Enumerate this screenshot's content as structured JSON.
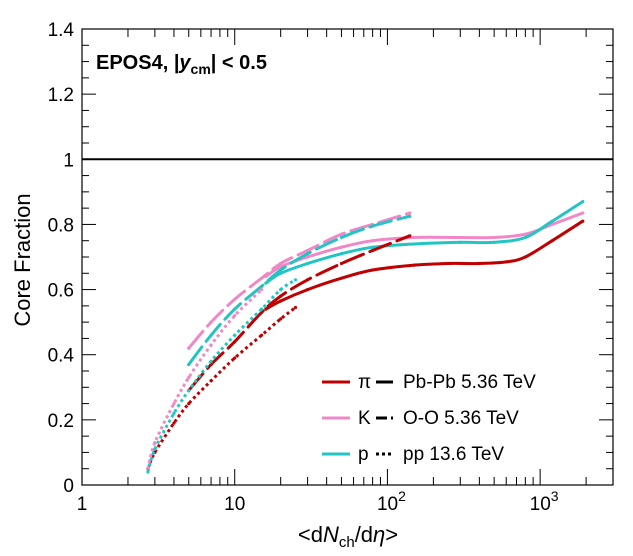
{
  "chart_data": {
    "type": "line",
    "title": "",
    "annotation": {
      "prefix": "EPOS4, |",
      "var": "y",
      "sub": "cm",
      "suffix": "| < 0.5"
    },
    "xlabel": {
      "open": "<d",
      "var": "N",
      "sub": "ch",
      "mid": "/d",
      "var2": "η",
      "close": ">"
    },
    "ylabel": "Core Fraction",
    "xscale": "log",
    "xlim": [
      1,
      3000
    ],
    "ylim": [
      0,
      1.4
    ],
    "yticks": [
      0,
      0.2,
      0.4,
      0.6,
      0.8,
      1,
      1.2,
      1.4
    ],
    "ytick_labels": [
      "0",
      "0.2",
      "0.4",
      "0.6",
      "0.8",
      "1",
      "1.2",
      "1.4"
    ],
    "xticks": [
      {
        "value": 1,
        "label": "1"
      },
      {
        "value": 10,
        "label": "10"
      },
      {
        "value": 100,
        "label": "10",
        "exp": "2"
      },
      {
        "value": 1000,
        "label": "10",
        "exp": "3"
      }
    ],
    "reference_line": {
      "y": 1,
      "color": "#000000"
    },
    "colors": {
      "pi": "#c00000",
      "K": "#f088c8",
      "p": "#22c4c4"
    },
    "series": [
      {
        "name": "π Pb-Pb 5.36 TeV",
        "particle": "pi",
        "system": "Pb-Pb",
        "style": "solid",
        "x": [
          16,
          20,
          30,
          50,
          80,
          150,
          250,
          400,
          600,
          800,
          1200,
          1900
        ],
        "y": [
          0.54,
          0.565,
          0.6,
          0.635,
          0.66,
          0.675,
          0.68,
          0.68,
          0.685,
          0.7,
          0.75,
          0.81
        ]
      },
      {
        "name": "K Pb-Pb 5.36 TeV",
        "particle": "K",
        "system": "Pb-Pb",
        "style": "solid",
        "x": [
          16,
          20,
          30,
          50,
          80,
          150,
          300,
          500,
          800,
          1200,
          1900
        ],
        "y": [
          0.64,
          0.67,
          0.7,
          0.73,
          0.75,
          0.76,
          0.76,
          0.76,
          0.77,
          0.8,
          0.835
        ]
      },
      {
        "name": "p Pb-Pb 5.36 TeV",
        "particle": "p",
        "system": "Pb-Pb",
        "style": "solid",
        "x": [
          16,
          20,
          30,
          50,
          80,
          150,
          300,
          500,
          800,
          1200,
          1900
        ],
        "y": [
          0.62,
          0.65,
          0.68,
          0.71,
          0.73,
          0.74,
          0.745,
          0.745,
          0.76,
          0.81,
          0.87
        ]
      },
      {
        "name": "π O-O 5.36 TeV",
        "particle": "pi",
        "system": "O-O",
        "style": "dashed",
        "x": [
          5,
          7,
          10,
          15,
          20,
          30,
          50,
          80,
          140
        ],
        "y": [
          0.29,
          0.37,
          0.44,
          0.53,
          0.58,
          0.63,
          0.68,
          0.72,
          0.765
        ]
      },
      {
        "name": "K O-O 5.36 TeV",
        "particle": "K",
        "system": "O-O",
        "style": "dashed",
        "x": [
          5,
          7,
          10,
          15,
          20,
          30,
          50,
          80,
          140
        ],
        "y": [
          0.42,
          0.5,
          0.57,
          0.635,
          0.68,
          0.72,
          0.77,
          0.8,
          0.835
        ]
      },
      {
        "name": "p O-O 5.36 TeV",
        "particle": "p",
        "system": "O-O",
        "style": "dashed",
        "x": [
          5,
          7,
          10,
          15,
          20,
          30,
          50,
          80,
          140
        ],
        "y": [
          0.37,
          0.46,
          0.54,
          0.61,
          0.66,
          0.71,
          0.76,
          0.795,
          0.825
        ]
      },
      {
        "name": "π pp 13.6 TeV",
        "particle": "pi",
        "system": "pp",
        "style": "dotted",
        "x": [
          2.7,
          3,
          4,
          5,
          7,
          10,
          15,
          20,
          25
        ],
        "y": [
          0.05,
          0.1,
          0.19,
          0.25,
          0.32,
          0.39,
          0.46,
          0.51,
          0.545
        ]
      },
      {
        "name": "K pp 13.6 TeV",
        "particle": "K",
        "system": "pp",
        "style": "dotted",
        "x": [
          2.7,
          3,
          4,
          5,
          7,
          10,
          15
        ],
        "y": [
          0.05,
          0.13,
          0.25,
          0.33,
          0.43,
          0.52,
          0.6
        ]
      },
      {
        "name": "p pp 13.6 TeV",
        "particle": "p",
        "system": "pp",
        "style": "dotted",
        "x": [
          2.7,
          3,
          4,
          5,
          7,
          10,
          15,
          20,
          25
        ],
        "y": [
          0.04,
          0.11,
          0.22,
          0.29,
          0.38,
          0.46,
          0.54,
          0.6,
          0.63
        ]
      }
    ],
    "legend": {
      "placement": "bottom-right",
      "particles": [
        {
          "key": "pi",
          "label": "π"
        },
        {
          "key": "K",
          "label": "K"
        },
        {
          "key": "p",
          "label": "p"
        }
      ],
      "systems": [
        {
          "style": "solid",
          "label": "Pb-Pb 5.36 TeV"
        },
        {
          "style": "dashed",
          "label": "O-O 5.36 TeV"
        },
        {
          "style": "dotted",
          "label": "pp 13.6 TeV"
        }
      ]
    }
  }
}
